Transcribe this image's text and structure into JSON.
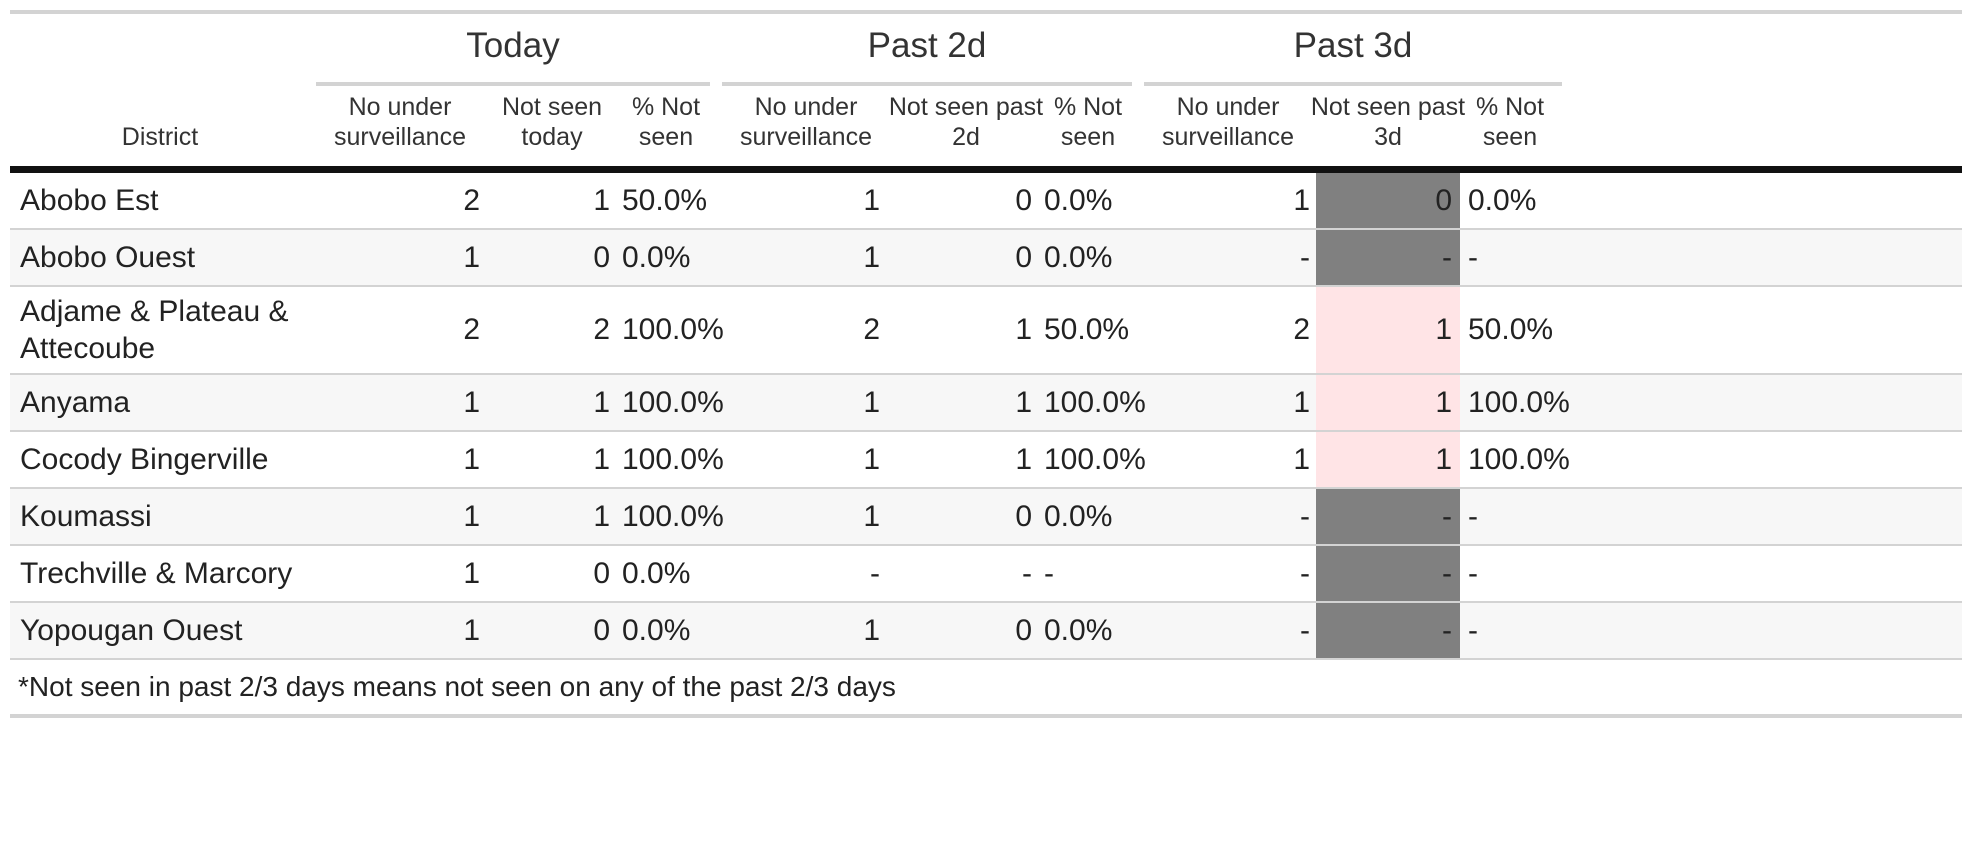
{
  "groups": [
    "Today",
    "Past 2d",
    "Past 3d"
  ],
  "headers": {
    "district": "District",
    "today": [
      "No under\nsurveillance",
      "Not seen\ntoday",
      "% Not\nseen"
    ],
    "past2d": [
      "No under\nsurveillance",
      "Not seen past\n2d",
      "% Not\nseen"
    ],
    "past3d": [
      "No under\nsurveillance",
      "Not seen past\n3d",
      "% Not\nseen"
    ]
  },
  "rows": [
    {
      "district": "Abobo Est",
      "t": [
        "2",
        "1",
        "50.0%"
      ],
      "p2": [
        "1",
        "0",
        "0.0%"
      ],
      "p3": [
        "1",
        "0",
        "0.0%"
      ],
      "hl": "grey"
    },
    {
      "district": "Abobo Ouest",
      "t": [
        "1",
        "0",
        "0.0%"
      ],
      "p2": [
        "1",
        "0",
        "0.0%"
      ],
      "p3": [
        "-",
        "-",
        "-"
      ],
      "hl": "grey"
    },
    {
      "district": "Adjame & Plateau &\nAttecoube",
      "t": [
        "2",
        "2",
        "100.0%"
      ],
      "p2": [
        "2",
        "1",
        "50.0%"
      ],
      "p3": [
        "2",
        "1",
        "50.0%"
      ],
      "hl": "pink"
    },
    {
      "district": "Anyama",
      "t": [
        "1",
        "1",
        "100.0%"
      ],
      "p2": [
        "1",
        "1",
        "100.0%"
      ],
      "p3": [
        "1",
        "1",
        "100.0%"
      ],
      "hl": "pink"
    },
    {
      "district": "Cocody Bingerville",
      "t": [
        "1",
        "1",
        "100.0%"
      ],
      "p2": [
        "1",
        "1",
        "100.0%"
      ],
      "p3": [
        "1",
        "1",
        "100.0%"
      ],
      "hl": "pink"
    },
    {
      "district": "Koumassi",
      "t": [
        "1",
        "1",
        "100.0%"
      ],
      "p2": [
        "1",
        "0",
        "0.0%"
      ],
      "p3": [
        "-",
        "-",
        "-"
      ],
      "hl": "grey"
    },
    {
      "district": "Trechville & Marcory",
      "t": [
        "1",
        "0",
        "0.0%"
      ],
      "p2": [
        "-",
        "-",
        "-"
      ],
      "p3": [
        "-",
        "-",
        "-"
      ],
      "hl": "grey"
    },
    {
      "district": "Yopougan Ouest",
      "t": [
        "1",
        "0",
        "0.0%"
      ],
      "p2": [
        "1",
        "0",
        "0.0%"
      ],
      "p3": [
        "-",
        "-",
        "-"
      ],
      "hl": "grey"
    }
  ],
  "footnote": "*Not seen in past 2/3 days means not seen on any of the past 2/3 days",
  "colors": {
    "highlight_grey": "#808080",
    "highlight_pink": "#ffe4e6",
    "header_rule": "#111111",
    "row_rule": "#d3d3d3"
  }
}
